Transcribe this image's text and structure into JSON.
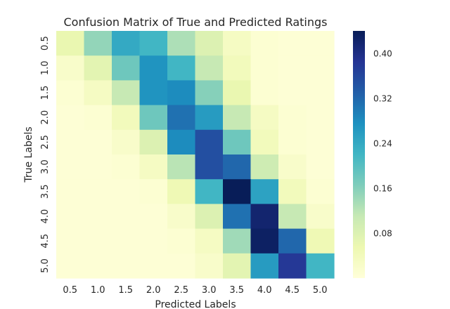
{
  "chart_data": {
    "type": "heatmap",
    "title": "Confusion Matrix of True and Predicted Ratings",
    "xlabel": "Predicted Labels",
    "ylabel": "True Labels",
    "x_categories": [
      "0.5",
      "1.0",
      "1.5",
      "2.0",
      "2.5",
      "3.0",
      "3.5",
      "4.0",
      "4.5",
      "5.0"
    ],
    "y_categories": [
      "0.5",
      "1.0",
      "1.5",
      "2.0",
      "2.5",
      "3.0",
      "3.5",
      "4.0",
      "4.5",
      "5.0"
    ],
    "values": [
      [
        0.06,
        0.15,
        0.24,
        0.22,
        0.13,
        0.08,
        0.03,
        0.01,
        0.005,
        0.005
      ],
      [
        0.02,
        0.07,
        0.18,
        0.27,
        0.22,
        0.11,
        0.04,
        0.01,
        0.005,
        0.005
      ],
      [
        0.01,
        0.03,
        0.11,
        0.27,
        0.28,
        0.16,
        0.06,
        0.01,
        0.005,
        0.005
      ],
      [
        0.005,
        0.01,
        0.04,
        0.18,
        0.31,
        0.26,
        0.11,
        0.03,
        0.01,
        0.005
      ],
      [
        0.005,
        0.005,
        0.02,
        0.08,
        0.28,
        0.35,
        0.18,
        0.04,
        0.01,
        0.005
      ],
      [
        0.005,
        0.005,
        0.01,
        0.03,
        0.12,
        0.35,
        0.32,
        0.1,
        0.02,
        0.005
      ],
      [
        0.005,
        0.005,
        0.005,
        0.01,
        0.05,
        0.22,
        0.44,
        0.25,
        0.04,
        0.01
      ],
      [
        0.005,
        0.005,
        0.005,
        0.005,
        0.02,
        0.08,
        0.31,
        0.42,
        0.11,
        0.02
      ],
      [
        0.005,
        0.005,
        0.005,
        0.005,
        0.01,
        0.03,
        0.14,
        0.43,
        0.32,
        0.05
      ],
      [
        0.005,
        0.005,
        0.005,
        0.005,
        0.005,
        0.02,
        0.07,
        0.26,
        0.38,
        0.22
      ]
    ],
    "vmin": 0.0,
    "vmax": 0.44,
    "colormap": "YlGnBu",
    "colorbar_ticks": [
      0.08,
      0.16,
      0.24,
      0.32,
      0.4
    ],
    "colorbar_tick_labels": [
      "0.08",
      "0.16",
      "0.24",
      "0.32",
      "0.40"
    ],
    "colormap_stops": [
      "#ffffd9",
      "#edf8b1",
      "#c7e9b4",
      "#7fcdbb",
      "#41b6c4",
      "#1d91c0",
      "#225ea8",
      "#253494",
      "#081d58"
    ]
  }
}
